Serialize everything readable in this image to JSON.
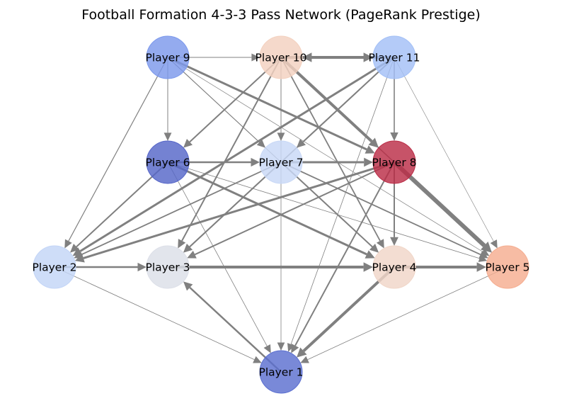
{
  "title": "Football Formation 4-3-3 Pass Network (PageRank Prestige)",
  "nodes": [
    {
      "id": 1,
      "label": "Player 1",
      "color": "#5b6fd0"
    },
    {
      "id": 2,
      "label": "Player 2",
      "color": "#c3d5f7"
    },
    {
      "id": 3,
      "label": "Player 3",
      "color": "#dcdfe8"
    },
    {
      "id": 4,
      "label": "Player 4",
      "color": "#f0d6c8"
    },
    {
      "id": 5,
      "label": "Player 5",
      "color": "#f5ad90"
    },
    {
      "id": 6,
      "label": "Player 6",
      "color": "#5666c8"
    },
    {
      "id": 7,
      "label": "Player 7",
      "color": "#c8d8f6"
    },
    {
      "id": 8,
      "label": "Player 8",
      "color": "#bb2d47"
    },
    {
      "id": 9,
      "label": "Player 9",
      "color": "#7c99ec"
    },
    {
      "id": 10,
      "label": "Player 10",
      "color": "#f3d1bf"
    },
    {
      "id": 11,
      "label": "Player 11",
      "color": "#a3c0f6"
    }
  ],
  "edges": [
    {
      "from": 10,
      "to": 11,
      "w": 4
    },
    {
      "from": 11,
      "to": 10,
      "w": 4
    },
    {
      "from": 9,
      "to": 10,
      "w": 1
    },
    {
      "from": 9,
      "to": 6,
      "w": 1
    },
    {
      "from": 9,
      "to": 8,
      "w": 3
    },
    {
      "from": 9,
      "to": 7,
      "w": 1
    },
    {
      "from": 9,
      "to": 2,
      "w": 1.2
    },
    {
      "from": 9,
      "to": 4,
      "w": 1
    },
    {
      "from": 9,
      "to": 5,
      "w": 0.7
    },
    {
      "from": 10,
      "to": 8,
      "w": 4
    },
    {
      "from": 10,
      "to": 6,
      "w": 2
    },
    {
      "from": 10,
      "to": 3,
      "w": 2
    },
    {
      "from": 10,
      "to": 7,
      "w": 1
    },
    {
      "from": 10,
      "to": 4,
      "w": 1.8
    },
    {
      "from": 10,
      "to": 5,
      "w": 1.5
    },
    {
      "from": 11,
      "to": 2,
      "w": 3
    },
    {
      "from": 11,
      "to": 7,
      "w": 2
    },
    {
      "from": 11,
      "to": 3,
      "w": 1.8
    },
    {
      "from": 11,
      "to": 8,
      "w": 1.6
    },
    {
      "from": 11,
      "to": 1,
      "w": 0.8
    },
    {
      "from": 11,
      "to": 5,
      "w": 0.6
    },
    {
      "from": 6,
      "to": 7,
      "w": 2.5
    },
    {
      "from": 6,
      "to": 2,
      "w": 2
    },
    {
      "from": 6,
      "to": 4,
      "w": 3
    },
    {
      "from": 6,
      "to": 1,
      "w": 0.8
    },
    {
      "from": 6,
      "to": 5,
      "w": 0.8
    },
    {
      "from": 7,
      "to": 8,
      "w": 3
    },
    {
      "from": 7,
      "to": 3,
      "w": 2
    },
    {
      "from": 7,
      "to": 2,
      "w": 1.8
    },
    {
      "from": 7,
      "to": 5,
      "w": 1.8
    },
    {
      "from": 8,
      "to": 5,
      "w": 6
    },
    {
      "from": 8,
      "to": 2,
      "w": 3
    },
    {
      "from": 8,
      "to": 3,
      "w": 2
    },
    {
      "from": 8,
      "to": 4,
      "w": 2
    },
    {
      "from": 8,
      "to": 1,
      "w": 2
    },
    {
      "from": 2,
      "to": 3,
      "w": 2.5
    },
    {
      "from": 3,
      "to": 4,
      "w": 4
    },
    {
      "from": 4,
      "to": 5,
      "w": 4
    },
    {
      "from": 1,
      "to": 3,
      "w": 2.5
    },
    {
      "from": 4,
      "to": 1,
      "w": 4
    },
    {
      "from": 2,
      "to": 1,
      "w": 0.8
    },
    {
      "from": 5,
      "to": 1,
      "w": 0.8
    },
    {
      "from": 10,
      "to": 1,
      "w": 0.8
    },
    {
      "from": 7,
      "to": 4,
      "w": 2
    }
  ]
}
